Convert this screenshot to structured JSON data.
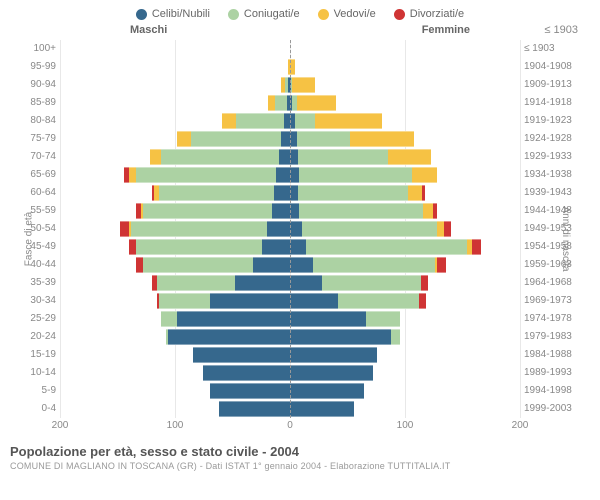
{
  "legend": [
    {
      "label": "Celibi/Nubili",
      "color": "#36688d"
    },
    {
      "label": "Coniugati/e",
      "color": "#acd2a3"
    },
    {
      "label": "Vedovi/e",
      "color": "#f6c244"
    },
    {
      "label": "Divorziati/e",
      "color": "#cf3434"
    }
  ],
  "headers": {
    "male": "Maschi",
    "female": "Femmine",
    "year_col": "≤ 1903"
  },
  "axis": {
    "left_title": "Fasce di età",
    "right_title": "Anni di nascita",
    "x_ticks": [
      -200,
      -100,
      0,
      100,
      200
    ],
    "x_tick_labels": [
      "200",
      "100",
      "0",
      "100",
      "200"
    ],
    "x_max": 200
  },
  "colors": {
    "celibi": "#36688d",
    "coniugati": "#acd2a3",
    "vedovi": "#f6c244",
    "divorziati": "#cf3434",
    "grid": "#e8e8e8",
    "text": "#888"
  },
  "rows": [
    {
      "age": "100+",
      "year": "≤ 1903",
      "m": {
        "c": 0,
        "g": 0,
        "v": 0,
        "d": 0
      },
      "f": {
        "c": 0,
        "g": 0,
        "v": 0,
        "d": 0
      }
    },
    {
      "age": "95-99",
      "year": "1904-1908",
      "m": {
        "c": 0,
        "g": 0,
        "v": 2,
        "d": 0
      },
      "f": {
        "c": 0,
        "g": 0,
        "v": 4,
        "d": 0
      }
    },
    {
      "age": "90-94",
      "year": "1909-1913",
      "m": {
        "c": 2,
        "g": 2,
        "v": 4,
        "d": 0
      },
      "f": {
        "c": 1,
        "g": 1,
        "v": 20,
        "d": 0
      }
    },
    {
      "age": "85-89",
      "year": "1914-1918",
      "m": {
        "c": 3,
        "g": 10,
        "v": 6,
        "d": 0
      },
      "f": {
        "c": 2,
        "g": 4,
        "v": 34,
        "d": 0
      }
    },
    {
      "age": "80-84",
      "year": "1919-1923",
      "m": {
        "c": 5,
        "g": 42,
        "v": 12,
        "d": 0
      },
      "f": {
        "c": 4,
        "g": 18,
        "v": 58,
        "d": 0
      }
    },
    {
      "age": "75-79",
      "year": "1924-1928",
      "m": {
        "c": 8,
        "g": 78,
        "v": 12,
        "d": 0
      },
      "f": {
        "c": 6,
        "g": 46,
        "v": 56,
        "d": 0
      }
    },
    {
      "age": "70-74",
      "year": "1929-1933",
      "m": {
        "c": 10,
        "g": 102,
        "v": 10,
        "d": 0
      },
      "f": {
        "c": 7,
        "g": 78,
        "v": 38,
        "d": 0
      }
    },
    {
      "age": "65-69",
      "year": "1934-1938",
      "m": {
        "c": 12,
        "g": 122,
        "v": 6,
        "d": 4
      },
      "f": {
        "c": 8,
        "g": 98,
        "v": 22,
        "d": 0
      }
    },
    {
      "age": "60-64",
      "year": "1939-1943",
      "m": {
        "c": 14,
        "g": 100,
        "v": 4,
        "d": 2
      },
      "f": {
        "c": 7,
        "g": 96,
        "v": 12,
        "d": 2
      }
    },
    {
      "age": "55-59",
      "year": "1944-1948",
      "m": {
        "c": 16,
        "g": 112,
        "v": 2,
        "d": 4
      },
      "f": {
        "c": 8,
        "g": 108,
        "v": 8,
        "d": 4
      }
    },
    {
      "age": "50-54",
      "year": "1949-1953",
      "m": {
        "c": 20,
        "g": 118,
        "v": 2,
        "d": 8
      },
      "f": {
        "c": 10,
        "g": 118,
        "v": 6,
        "d": 6
      }
    },
    {
      "age": "45-49",
      "year": "1954-1958",
      "m": {
        "c": 24,
        "g": 110,
        "v": 0,
        "d": 6
      },
      "f": {
        "c": 14,
        "g": 140,
        "v": 4,
        "d": 8
      }
    },
    {
      "age": "40-44",
      "year": "1959-1963",
      "m": {
        "c": 32,
        "g": 96,
        "v": 0,
        "d": 6
      },
      "f": {
        "c": 20,
        "g": 106,
        "v": 2,
        "d": 8
      }
    },
    {
      "age": "35-39",
      "year": "1964-1968",
      "m": {
        "c": 48,
        "g": 68,
        "v": 0,
        "d": 4
      },
      "f": {
        "c": 28,
        "g": 86,
        "v": 0,
        "d": 6
      }
    },
    {
      "age": "30-34",
      "year": "1969-1973",
      "m": {
        "c": 70,
        "g": 44,
        "v": 0,
        "d": 2
      },
      "f": {
        "c": 42,
        "g": 70,
        "v": 0,
        "d": 6
      }
    },
    {
      "age": "25-29",
      "year": "1974-1978",
      "m": {
        "c": 98,
        "g": 14,
        "v": 0,
        "d": 0
      },
      "f": {
        "c": 66,
        "g": 30,
        "v": 0,
        "d": 0
      }
    },
    {
      "age": "20-24",
      "year": "1979-1983",
      "m": {
        "c": 106,
        "g": 2,
        "v": 0,
        "d": 0
      },
      "f": {
        "c": 88,
        "g": 8,
        "v": 0,
        "d": 0
      }
    },
    {
      "age": "15-19",
      "year": "1984-1988",
      "m": {
        "c": 84,
        "g": 0,
        "v": 0,
        "d": 0
      },
      "f": {
        "c": 76,
        "g": 0,
        "v": 0,
        "d": 0
      }
    },
    {
      "age": "10-14",
      "year": "1989-1993",
      "m": {
        "c": 76,
        "g": 0,
        "v": 0,
        "d": 0
      },
      "f": {
        "c": 72,
        "g": 0,
        "v": 0,
        "d": 0
      }
    },
    {
      "age": "5-9",
      "year": "1994-1998",
      "m": {
        "c": 70,
        "g": 0,
        "v": 0,
        "d": 0
      },
      "f": {
        "c": 64,
        "g": 0,
        "v": 0,
        "d": 0
      }
    },
    {
      "age": "0-4",
      "year": "1999-2003",
      "m": {
        "c": 62,
        "g": 0,
        "v": 0,
        "d": 0
      },
      "f": {
        "c": 56,
        "g": 0,
        "v": 0,
        "d": 0
      }
    }
  ],
  "footer": {
    "title": "Popolazione per età, sesso e stato civile - 2004",
    "subtitle": "COMUNE DI MAGLIANO IN TOSCANA (GR) - Dati ISTAT 1° gennaio 2004 - Elaborazione TUTTITALIA.IT"
  }
}
